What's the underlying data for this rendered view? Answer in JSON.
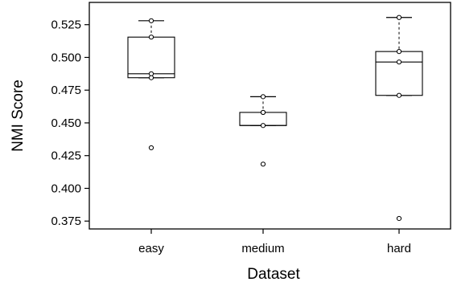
{
  "chart_data": {
    "type": "box",
    "title": "",
    "xlabel": "Dataset",
    "ylabel": "NMI Score",
    "ylim": [
      0.369,
      0.542
    ],
    "yticks": [
      "0.375",
      "0.400",
      "0.425",
      "0.450",
      "0.475",
      "0.500",
      "0.525"
    ],
    "grid": false,
    "categories": [
      "easy",
      "medium",
      "hard"
    ],
    "boxes": [
      {
        "category": "easy",
        "q1": 0.4845,
        "median": 0.4875,
        "q3": 0.5155,
        "whisker_low": 0.4845,
        "whisker_high": 0.528,
        "points": [
          0.528,
          0.5155,
          0.4875,
          0.4845,
          0.431
        ]
      },
      {
        "category": "medium",
        "q1": 0.448,
        "median": 0.448,
        "q3": 0.458,
        "whisker_low": 0.448,
        "whisker_high": 0.47,
        "points": [
          0.47,
          0.458,
          0.458,
          0.448,
          0.4185
        ]
      },
      {
        "category": "hard",
        "q1": 0.471,
        "median": 0.4965,
        "q3": 0.5045,
        "whisker_low": 0.471,
        "whisker_high": 0.5305,
        "points": [
          0.5305,
          0.5045,
          0.4965,
          0.471,
          0.377
        ]
      }
    ]
  }
}
